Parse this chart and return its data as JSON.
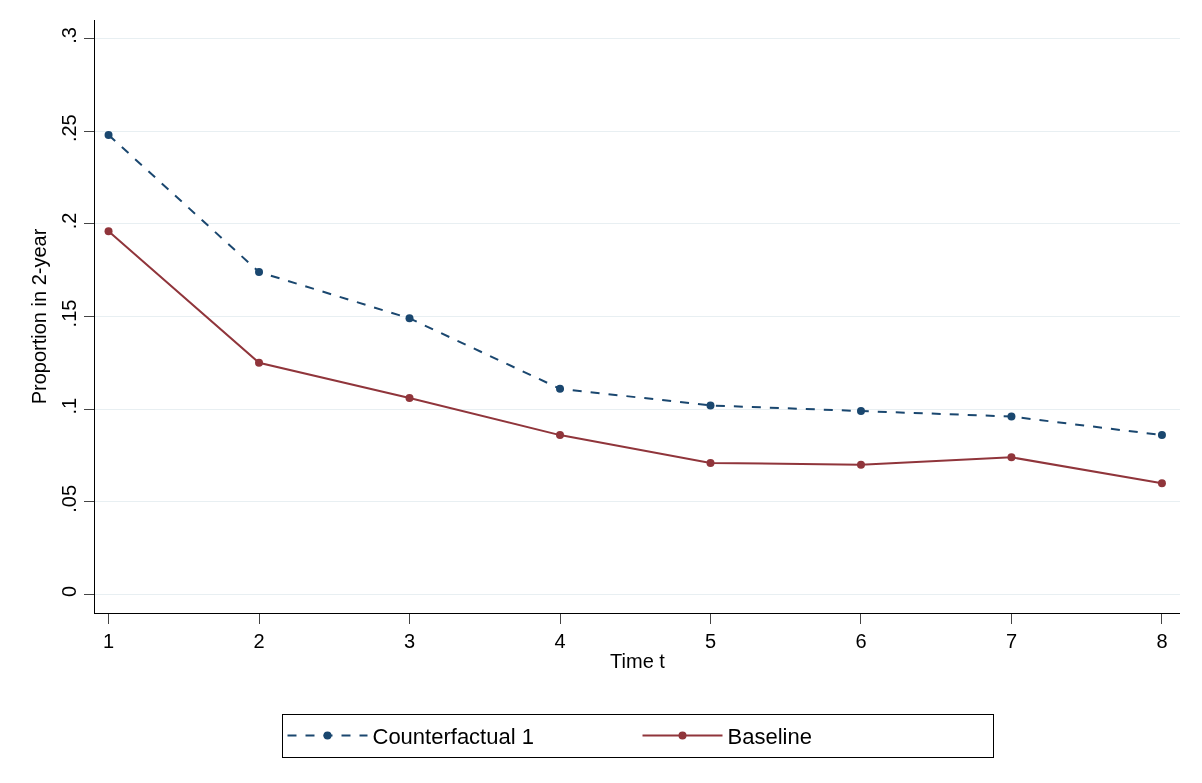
{
  "chart_data": {
    "type": "line",
    "xlabel": "Time t",
    "ylabel": "Proportion in 2-year",
    "x": [
      1,
      2,
      3,
      4,
      5,
      6,
      7,
      8
    ],
    "series": [
      {
        "name": "Counterfactual 1",
        "color": "#1a476f",
        "line_style": "dashed",
        "values": [
          0.248,
          0.174,
          0.149,
          0.111,
          0.102,
          0.099,
          0.096,
          0.086
        ]
      },
      {
        "name": "Baseline",
        "color": "#90353b",
        "line_style": "solid",
        "values": [
          0.196,
          0.125,
          0.106,
          0.086,
          0.071,
          0.07,
          0.074,
          0.06
        ]
      }
    ],
    "xlim": [
      0.91,
      8.12
    ],
    "xticks": [
      1,
      2,
      3,
      4,
      5,
      6,
      7,
      8
    ],
    "ylim": [
      -0.01,
      0.31
    ],
    "yticks": [
      {
        "value": 0,
        "label": "0"
      },
      {
        "value": 0.05,
        "label": ".05"
      },
      {
        "value": 0.1,
        "label": ".1"
      },
      {
        "value": 0.15,
        "label": ".15"
      },
      {
        "value": 0.2,
        "label": ".2"
      },
      {
        "value": 0.25,
        "label": ".25"
      },
      {
        "value": 0.3,
        "label": ".3"
      }
    ],
    "grid": "y",
    "legend": "bottom",
    "marker": "circle"
  }
}
